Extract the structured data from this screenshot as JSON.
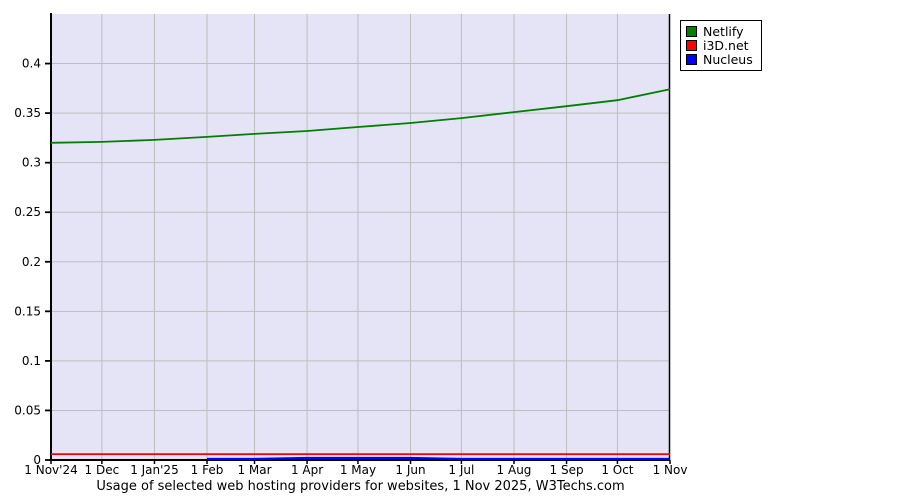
{
  "colors": {
    "page_bg": "#ffffff",
    "plot_bg": "#e4e4f6",
    "grid": "#bdbdbd",
    "axis": "#000000",
    "text": "#000000",
    "legend_border": "#000000",
    "netlify_green": "#008000",
    "i3d_red": "#ff0000",
    "nucleus_blue": "#0000ff"
  },
  "chart_data": {
    "type": "line",
    "title": "Usage of selected web hosting providers for websites, 1 Nov 2025, W3Techs.com",
    "xlabel": "",
    "ylabel": "",
    "ylim": [
      0,
      0.45
    ],
    "grid": true,
    "legend_position": "outside-top-right",
    "x_tick_labels": [
      "1 Nov'24",
      "1 Dec",
      "1 Jan'25",
      "1 Feb",
      "1 Mar",
      "1 Apr",
      "1 May",
      "1 Jun",
      "1 Jul",
      "1 Aug",
      "1 Sep",
      "1 Oct",
      "1 Nov"
    ],
    "x_day_offsets": [
      0,
      30,
      61,
      92,
      120,
      151,
      181,
      212,
      242,
      273,
      304,
      334,
      365
    ],
    "y_ticks": [
      0,
      0.05,
      0.1,
      0.15,
      0.2,
      0.25,
      0.3,
      0.35,
      0.4
    ],
    "y_tick_labels": [
      "0",
      "0.05",
      "0.1",
      "0.15",
      "0.2",
      "0.25",
      "0.3",
      "0.35",
      "0.4"
    ],
    "series": [
      {
        "name": "Netlify",
        "color": "#008000",
        "values": [
          0.32,
          0.321,
          0.323,
          0.326,
          0.329,
          0.332,
          0.336,
          0.34,
          0.345,
          0.351,
          0.357,
          0.363,
          0.374
        ]
      },
      {
        "name": "i3D.net",
        "color": "#ff0000",
        "values": [
          0.006,
          0.006,
          0.006,
          0.006,
          0.006,
          0.006,
          0.006,
          0.006,
          0.006,
          0.006,
          0.006,
          0.006,
          0.006
        ]
      },
      {
        "name": "Nucleus",
        "color": "#0000ff",
        "values": [
          null,
          null,
          null,
          0.001,
          0.001,
          0.002,
          0.002,
          0.002,
          0.001,
          0.001,
          0.001,
          0.001,
          0.001
        ]
      }
    ]
  }
}
